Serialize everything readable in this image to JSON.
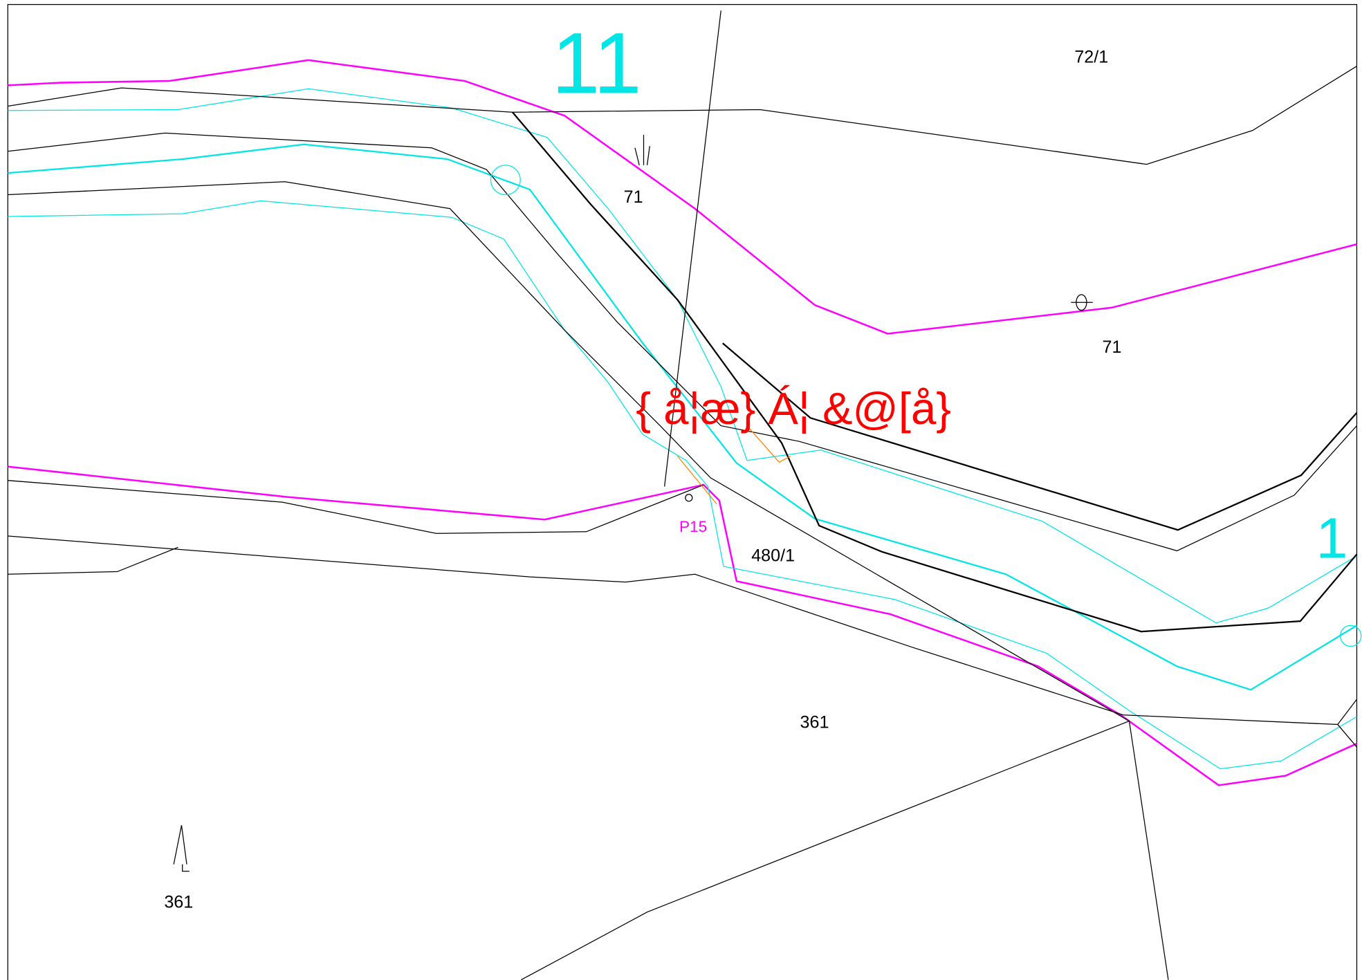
{
  "map": {
    "labels": {
      "sheet_large": "11",
      "sheet_right": "1",
      "parcel_72_1": "72/1",
      "parcel_71_upper": "71",
      "parcel_71_right": "71",
      "parcel_480_1": "480/1",
      "parcel_361_center": "361",
      "parcel_361_left": "361",
      "point": "P15",
      "street_name": "{ å¦æ} Á¦ &@[å}"
    }
  }
}
